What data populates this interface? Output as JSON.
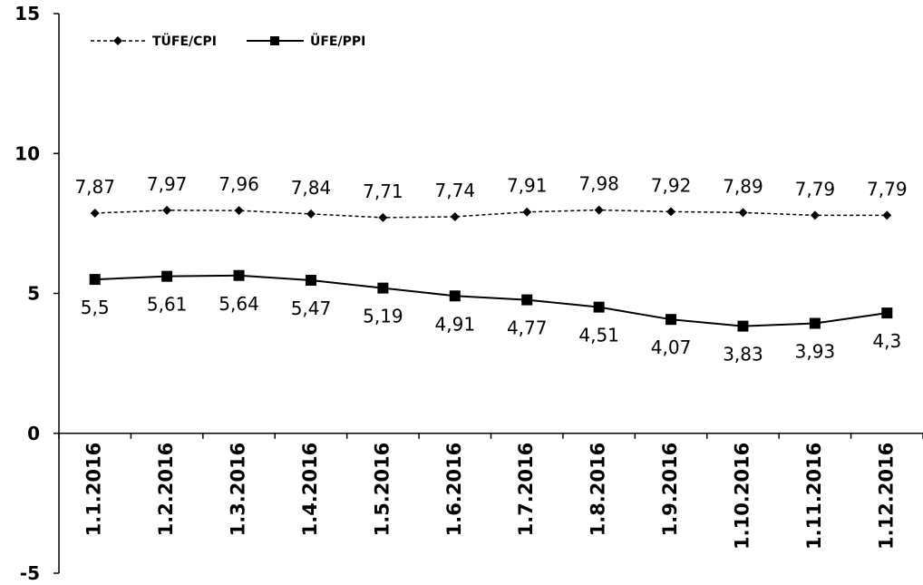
{
  "chart_data": {
    "type": "line",
    "categories": [
      "1.1.2016",
      "1.2.2016",
      "1.3.2016",
      "1.4.2016",
      "1.5.2016",
      "1.6.2016",
      "1.7.2016",
      "1.8.2016",
      "1.9.2016",
      "1.10.2016",
      "1.11.2016",
      "1.12.2016"
    ],
    "series": [
      {
        "name": "TÜFE/CPI",
        "values": [
          7.87,
          7.97,
          7.96,
          7.84,
          7.71,
          7.74,
          7.91,
          7.98,
          7.92,
          7.89,
          7.79,
          7.79
        ],
        "labels": [
          "7,87",
          "7,97",
          "7,96",
          "7,84",
          "7,71",
          "7,74",
          "7,91",
          "7,98",
          "7,92",
          "7,89",
          "7,79",
          "7,79"
        ],
        "line_style": "dashed",
        "marker": "diamond",
        "label_position": "above",
        "color": "#000000"
      },
      {
        "name": "ÜFE/PPI",
        "values": [
          5.5,
          5.61,
          5.64,
          5.47,
          5.19,
          4.91,
          4.77,
          4.51,
          4.07,
          3.83,
          3.93,
          4.3
        ],
        "labels": [
          "5,5",
          "5,61",
          "5,64",
          "5,47",
          "5,19",
          "4,91",
          "4,77",
          "4,51",
          "4,07",
          "3,83",
          "3,93",
          "4,3"
        ],
        "line_style": "solid",
        "marker": "square",
        "label_position": "below",
        "color": "#000000"
      }
    ],
    "yticks": [
      "15",
      "10",
      "5",
      "0",
      "-5"
    ],
    "ylim": [
      -5,
      15
    ],
    "title": "",
    "xlabel": "",
    "ylabel": "",
    "legend": "top-left",
    "grid": false
  }
}
